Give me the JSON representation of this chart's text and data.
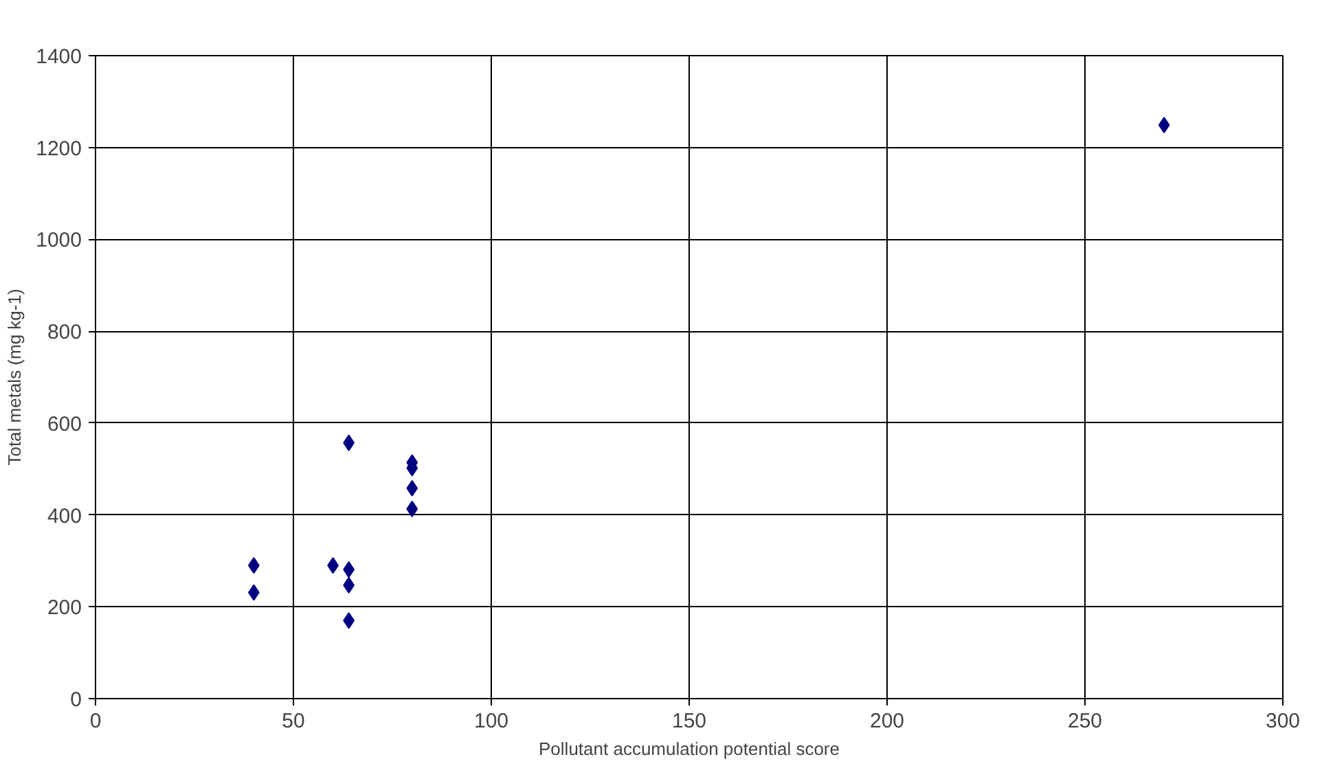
{
  "chart_data": {
    "type": "scatter",
    "xlabel": "Pollutant accumulation potential score",
    "ylabel": "Total metals (mg kg-1)",
    "x": [
      40,
      40,
      60,
      64,
      64,
      64,
      64,
      80,
      80,
      80,
      80,
      270
    ],
    "series": [
      {
        "color": "#000080",
        "values": [
          290,
          231,
          290,
          557,
          281,
          247,
          170,
          514,
          502,
          458,
          413,
          1249
        ]
      }
    ],
    "marker": "diamond",
    "grid": true,
    "xlim": [
      0,
      300
    ],
    "xticks": [
      0,
      50,
      100,
      150,
      200,
      250,
      300
    ],
    "ylim": [
      0,
      1400
    ],
    "yticks": [
      0,
      200,
      400,
      600,
      800,
      1000,
      1200,
      1400
    ]
  }
}
